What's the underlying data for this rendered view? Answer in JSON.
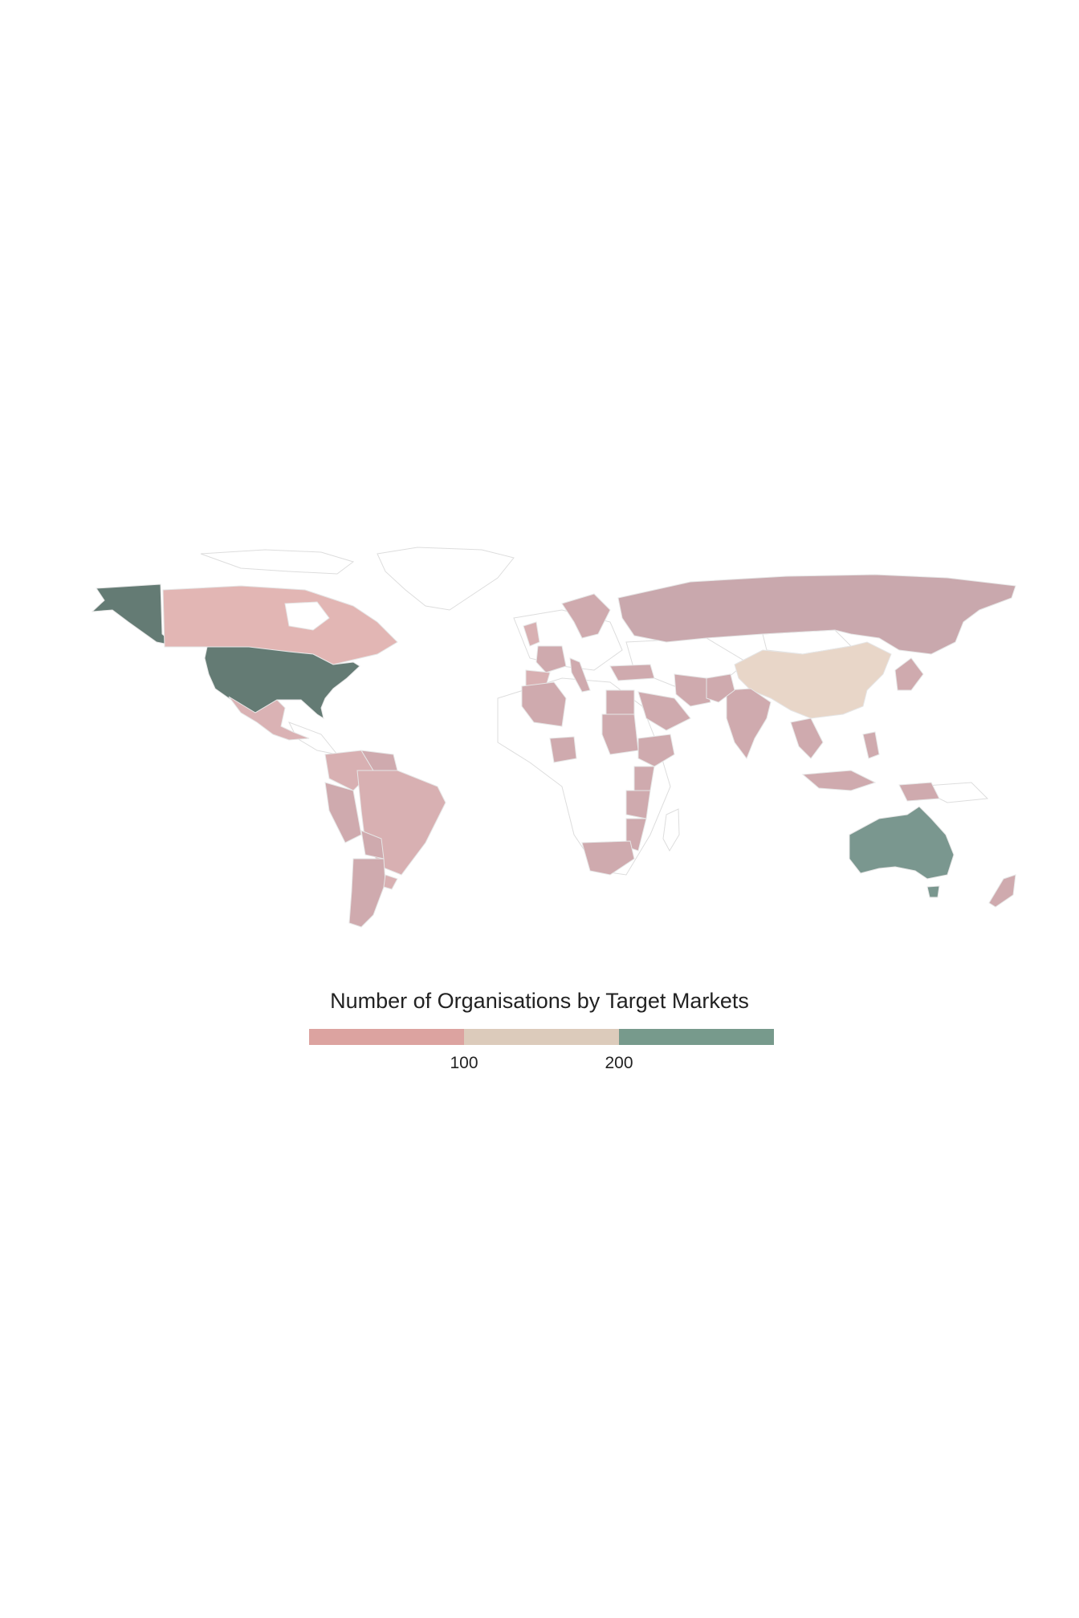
{
  "legend": {
    "title": "Number of Organisations by Target Markets",
    "segments": [
      {
        "from": 0,
        "to": 100,
        "color": "#dca3a0"
      },
      {
        "from": 100,
        "to": 200,
        "color": "#dccbbb"
      },
      {
        "from": 200,
        "to": 300,
        "color": "#779a8c"
      }
    ],
    "ticks": [
      "100",
      "200"
    ]
  },
  "colors": {
    "land_no_data": "#ffffff",
    "border": "#dddddd",
    "usa": "#647b74",
    "alaska": "#647b74",
    "australia": "#7a978f",
    "china": "#e8d6c8",
    "canada": "#e2b6b4",
    "russia": "#c9a8ad",
    "mid_pink": "#cfaaae",
    "light_pink": "#d8b0b2",
    "mexico": "#dab2b4"
  },
  "regions": [
    {
      "name": "alaska",
      "value_band": "200+"
    },
    {
      "name": "united-states",
      "value_band": "200+"
    },
    {
      "name": "australia",
      "value_band": "200+"
    },
    {
      "name": "china",
      "value_band": "100-200"
    },
    {
      "name": "canada",
      "value_band": "0-100"
    },
    {
      "name": "russia",
      "value_band": "0-100"
    },
    {
      "name": "brazil",
      "value_band": "0-100"
    },
    {
      "name": "india",
      "value_band": "0-100"
    }
  ]
}
